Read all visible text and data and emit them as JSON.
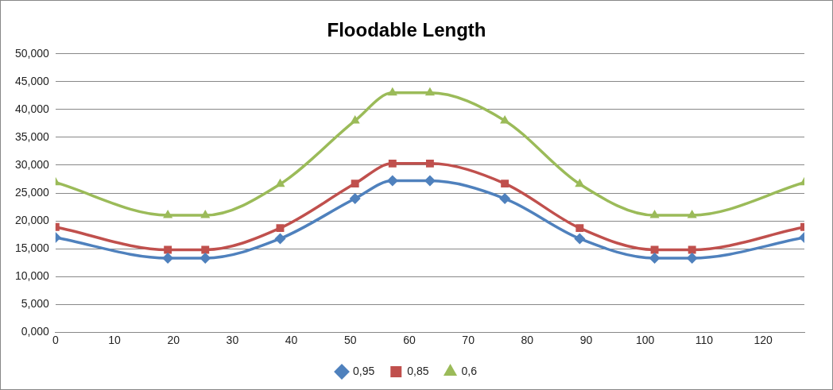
{
  "chart_data": {
    "type": "line",
    "title": "Floodable Length",
    "x": [
      0,
      19.05,
      25.4,
      38.1,
      50.8,
      57.15,
      63.5,
      76.2,
      88.9,
      101.6,
      107.95,
      127
    ],
    "series": [
      {
        "name": "0,95",
        "color": "#4f81bd",
        "marker": "diamond",
        "values": [
          17.0,
          13.3,
          13.3,
          16.8,
          24.0,
          27.2,
          27.2,
          24.0,
          16.8,
          13.3,
          13.3,
          17.0
        ]
      },
      {
        "name": "0,85",
        "color": "#c0504d",
        "marker": "square",
        "values": [
          18.9,
          14.8,
          14.8,
          18.7,
          26.7,
          30.3,
          30.3,
          26.7,
          18.7,
          14.8,
          14.8,
          18.9
        ]
      },
      {
        "name": "0,6",
        "color": "#9bbb59",
        "marker": "triangle",
        "values": [
          26.9,
          21.0,
          21.0,
          26.6,
          38.0,
          43.0,
          43.0,
          38.0,
          26.6,
          21.0,
          21.0,
          26.9
        ]
      }
    ],
    "xlim": [
      0,
      127
    ],
    "xticks": [
      0,
      10,
      20,
      30,
      40,
      50,
      60,
      70,
      80,
      90,
      100,
      110,
      120
    ],
    "ylim": [
      0,
      50
    ],
    "yticks": [
      {
        "value": 0,
        "label": "0,000"
      },
      {
        "value": 5,
        "label": "5,000"
      },
      {
        "value": 10,
        "label": "10,000"
      },
      {
        "value": 15,
        "label": "15,000"
      },
      {
        "value": 20,
        "label": "20,000"
      },
      {
        "value": 25,
        "label": "25,000"
      },
      {
        "value": 30,
        "label": "30,000"
      },
      {
        "value": 35,
        "label": "35,000"
      },
      {
        "value": 40,
        "label": "40,000"
      },
      {
        "value": 45,
        "label": "45,000"
      },
      {
        "value": 50,
        "label": "50,000"
      }
    ],
    "grid": "y",
    "legend": "bottom",
    "line_style": "solid"
  }
}
